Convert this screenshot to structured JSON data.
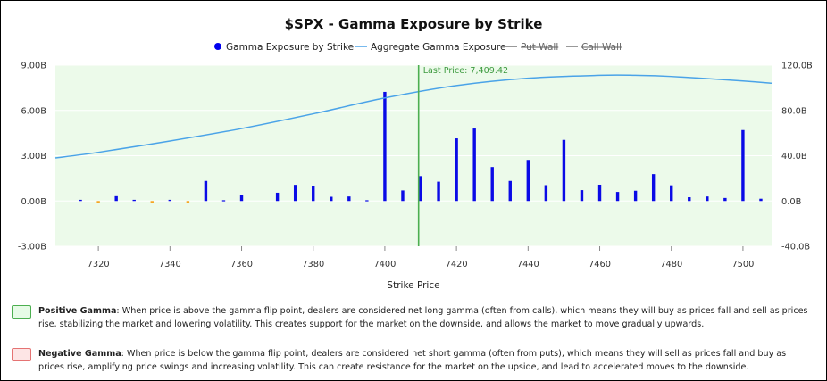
{
  "chart_data": {
    "type": "bar",
    "title": "$SPX - Gamma Exposure by Strike",
    "xlabel": "Strike Price",
    "xlim": [
      7308,
      7508
    ],
    "ylim_left": [
      -3.0,
      9.0
    ],
    "ylim_right": [
      -40.0,
      120.0
    ],
    "x_ticks": [
      "7320",
      "7340",
      "7360",
      "7380",
      "7400",
      "7420",
      "7440",
      "7460",
      "7480",
      "7500"
    ],
    "x_tick_values": [
      7320,
      7340,
      7360,
      7380,
      7400,
      7420,
      7440,
      7460,
      7480,
      7500
    ],
    "y_left_ticks": [
      "9.00B",
      "6.00B",
      "3.00B",
      "0.00B",
      "-3.00B"
    ],
    "y_left_tick_values": [
      9,
      6,
      3,
      0,
      -3
    ],
    "y_right_ticks": [
      "120.0B",
      "80.0B",
      "40.0B",
      "0.0B",
      "-40.0B"
    ],
    "y_right_tick_values": [
      120,
      80,
      40,
      0,
      -40
    ],
    "grid": true,
    "legend_position": "top-center",
    "legend": [
      {
        "label": "Gamma Exposure by Strike",
        "marker": "dot",
        "color": "#0000ee"
      },
      {
        "label": "Aggregate Gamma Exposure",
        "marker": "line",
        "color": "#4aa3e8"
      },
      {
        "label": "Put Wall",
        "marker": "line",
        "color": "#555555",
        "struck": true
      },
      {
        "label": "Call Wall",
        "marker": "line",
        "color": "#555555",
        "struck": true
      }
    ],
    "last_price_label": "Last Price: 7,409.42",
    "last_price": 7409.42,
    "colors": {
      "positive": "#0a0ae6",
      "negative": "#f5a623",
      "aggregate": "#4aa3e8",
      "last_price": "#4caf50",
      "plot_bg": "#ecfaea"
    },
    "series": [
      {
        "name": "Gamma Exposure by Strike",
        "y_axis": "left",
        "points": [
          {
            "x": 7315,
            "y": 0.08
          },
          {
            "x": 7320,
            "y": -0.12
          },
          {
            "x": 7325,
            "y": 0.32
          },
          {
            "x": 7330,
            "y": 0.08
          },
          {
            "x": 7335,
            "y": -0.12
          },
          {
            "x": 7340,
            "y": 0.08
          },
          {
            "x": 7345,
            "y": -0.12
          },
          {
            "x": 7350,
            "y": 1.33
          },
          {
            "x": 7355,
            "y": 0.05
          },
          {
            "x": 7360,
            "y": 0.38
          },
          {
            "x": 7370,
            "y": 0.55
          },
          {
            "x": 7375,
            "y": 1.07
          },
          {
            "x": 7380,
            "y": 0.98
          },
          {
            "x": 7385,
            "y": 0.28
          },
          {
            "x": 7390,
            "y": 0.3
          },
          {
            "x": 7395,
            "y": 0.05
          },
          {
            "x": 7400,
            "y": 7.23
          },
          {
            "x": 7405,
            "y": 0.7
          },
          {
            "x": 7410,
            "y": 1.65
          },
          {
            "x": 7415,
            "y": 1.28
          },
          {
            "x": 7420,
            "y": 4.15
          },
          {
            "x": 7425,
            "y": 4.8
          },
          {
            "x": 7430,
            "y": 2.25
          },
          {
            "x": 7435,
            "y": 1.33
          },
          {
            "x": 7440,
            "y": 2.72
          },
          {
            "x": 7445,
            "y": 1.05
          },
          {
            "x": 7450,
            "y": 4.05
          },
          {
            "x": 7455,
            "y": 0.72
          },
          {
            "x": 7460,
            "y": 1.08
          },
          {
            "x": 7465,
            "y": 0.6
          },
          {
            "x": 7470,
            "y": 0.68
          },
          {
            "x": 7475,
            "y": 1.78
          },
          {
            "x": 7480,
            "y": 1.04
          },
          {
            "x": 7485,
            "y": 0.25
          },
          {
            "x": 7490,
            "y": 0.3
          },
          {
            "x": 7495,
            "y": 0.2
          },
          {
            "x": 7500,
            "y": 4.7
          },
          {
            "x": 7505,
            "y": 0.15
          }
        ]
      },
      {
        "name": "Aggregate Gamma Exposure",
        "y_axis": "right",
        "points": [
          {
            "x": 7308,
            "y": 38.0
          },
          {
            "x": 7320,
            "y": 43.0
          },
          {
            "x": 7340,
            "y": 53.0
          },
          {
            "x": 7360,
            "y": 64.0
          },
          {
            "x": 7380,
            "y": 77.0
          },
          {
            "x": 7400,
            "y": 91.0
          },
          {
            "x": 7420,
            "y": 102.0
          },
          {
            "x": 7440,
            "y": 108.5
          },
          {
            "x": 7460,
            "y": 111.0
          },
          {
            "x": 7470,
            "y": 111.0
          },
          {
            "x": 7480,
            "y": 110.0
          },
          {
            "x": 7500,
            "y": 106.0
          },
          {
            "x": 7508,
            "y": 104.0
          }
        ]
      }
    ]
  },
  "explanations": {
    "positive_title": "Positive Gamma",
    "positive_text": ": When price is above the gamma flip point, dealers are considered net long gamma (often from calls), which means they will buy as prices fall and sell as prices rise, stabilizing the market and lowering volatility. This creates support for the market on the downside, and allows the market to move gradually upwards.",
    "positive_color": "#e6fbe6",
    "positive_border": "#4caf50",
    "negative_title": "Negative Gamma",
    "negative_text": ": When price is below the gamma flip point, dealers are considered net short gamma (often from puts), which means they will sell as prices fall and buy as prices rise, amplifying price swings and increasing volatility. This can create resistance for the market on the upside, and lead to accelerated moves to the downside.",
    "negative_color": "#fde5e5",
    "negative_border": "#e57373"
  }
}
